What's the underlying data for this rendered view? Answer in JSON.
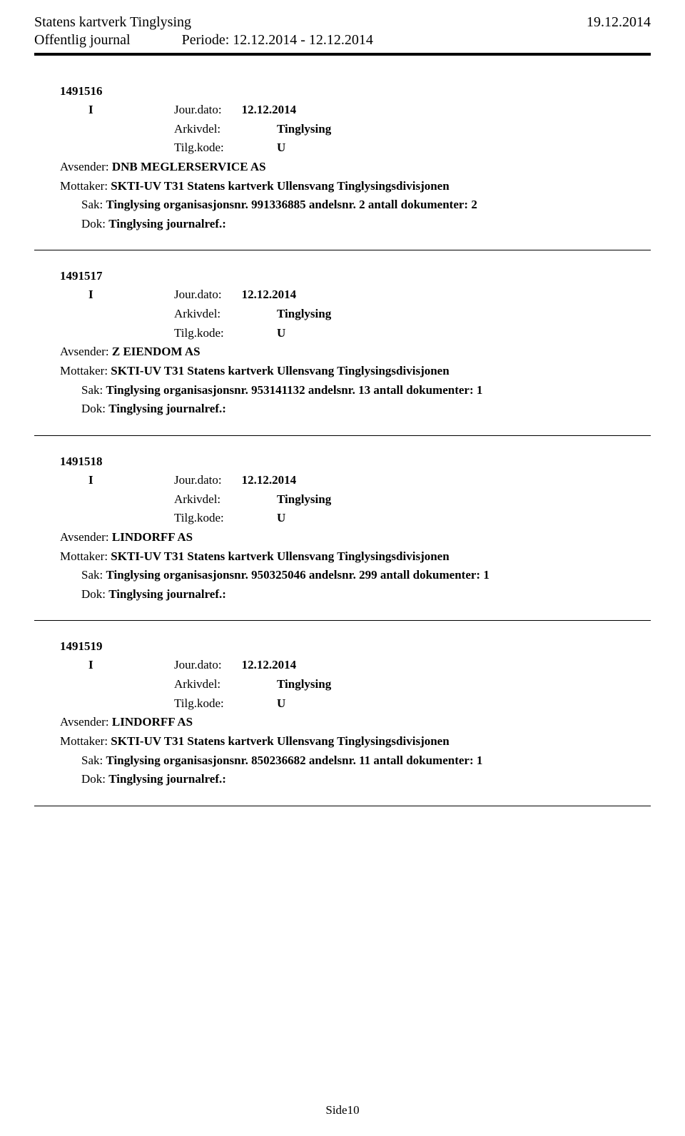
{
  "header": {
    "title": "Statens kartverk Tinglysing",
    "date": "19.12.2014",
    "subtitle": "Offentlig journal",
    "periode": "Periode: 12.12.2014 - 12.12.2014"
  },
  "labels": {
    "jour": "Jour.dato:",
    "arkiv": "Arkivdel:",
    "tilg": "Tilg.kode:",
    "avsender": "Avsender:",
    "mottaker": "Mottaker:",
    "sak": "Sak:",
    "dok": "Dok:",
    "I": "I"
  },
  "entries": [
    {
      "id": "1491516",
      "jour_dato": "12.12.2014",
      "arkivdel": "Tinglysing",
      "tilgkode": "U",
      "avsender": "DNB MEGLERSERVICE AS",
      "mottaker": "SKTI-UV T31 Statens kartverk Ullensvang Tinglysingsdivisjonen",
      "sak": "Tinglysing organisasjonsnr. 991336885 andelsnr. 2 antall dokumenter: 2",
      "dok": "Tinglysing journalref.:"
    },
    {
      "id": "1491517",
      "jour_dato": "12.12.2014",
      "arkivdel": "Tinglysing",
      "tilgkode": "U",
      "avsender": "Z EIENDOM AS",
      "mottaker": "SKTI-UV T31 Statens kartverk Ullensvang Tinglysingsdivisjonen",
      "sak": "Tinglysing organisasjonsnr. 953141132 andelsnr. 13 antall dokumenter: 1",
      "dok": "Tinglysing journalref.:"
    },
    {
      "id": "1491518",
      "jour_dato": "12.12.2014",
      "arkivdel": "Tinglysing",
      "tilgkode": "U",
      "avsender": "LINDORFF AS",
      "mottaker": "SKTI-UV T31 Statens kartverk Ullensvang Tinglysingsdivisjonen",
      "sak": "Tinglysing organisasjonsnr. 950325046 andelsnr. 299 antall dokumenter: 1",
      "dok": "Tinglysing journalref.:"
    },
    {
      "id": "1491519",
      "jour_dato": "12.12.2014",
      "arkivdel": "Tinglysing",
      "tilgkode": "U",
      "avsender": "LINDORFF AS",
      "mottaker": "SKTI-UV T31 Statens kartverk Ullensvang Tinglysingsdivisjonen",
      "sak": "Tinglysing organisasjonsnr. 850236682 andelsnr. 11 antall dokumenter: 1",
      "dok": "Tinglysing journalref.:"
    }
  ],
  "footer": "Side10"
}
